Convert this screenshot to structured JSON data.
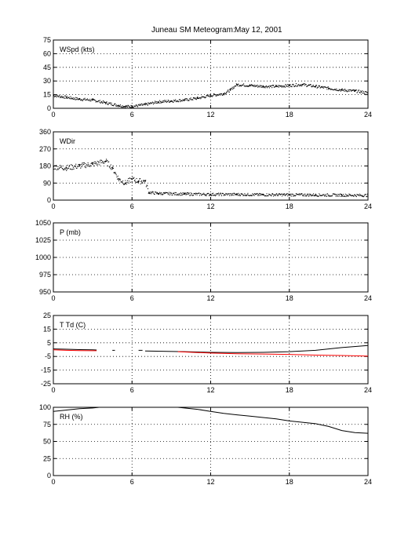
{
  "title": {
    "station": "Juneau SM Meteogram:",
    "date": "May 12, 2001"
  },
  "chart_data": [
    {
      "type": "scatter",
      "label": "WSpd (kts)",
      "xlim": [
        0,
        24
      ],
      "xticks": [
        "0",
        "6",
        "12",
        "18",
        "24"
      ],
      "ylim": [
        0,
        75
      ],
      "yticks": [
        "0",
        "15",
        "30",
        "45",
        "60",
        "75"
      ],
      "grid": true,
      "series": [
        {
          "color": "#000000",
          "x": [
            0,
            1,
            2,
            3,
            4,
            5,
            5.5,
            6,
            7,
            8,
            9,
            10,
            11,
            12,
            13,
            13.5,
            14,
            15,
            16,
            17,
            18,
            19,
            20,
            21,
            22,
            23,
            24
          ],
          "y": [
            14,
            12,
            10,
            9,
            6,
            3,
            2,
            2,
            4,
            7,
            8,
            9,
            11,
            14,
            16,
            20,
            26,
            25,
            24,
            24,
            25,
            26,
            24,
            22,
            20,
            19,
            17
          ]
        }
      ]
    },
    {
      "type": "scatter",
      "label": "WDir",
      "xlim": [
        0,
        24
      ],
      "xticks": [
        "0",
        "6",
        "12",
        "18",
        "24"
      ],
      "ylim": [
        0,
        360
      ],
      "yticks": [
        "0",
        "90",
        "180",
        "270",
        "360"
      ],
      "grid": true,
      "series": [
        {
          "color": "#000000",
          "x": [
            0,
            1,
            2,
            3,
            4,
            4.5,
            5,
            5.5,
            6,
            6.5,
            7,
            7.3,
            8,
            10,
            12,
            14,
            16,
            18,
            20,
            22,
            24
          ],
          "y": [
            175,
            170,
            180,
            190,
            205,
            170,
            110,
            90,
            110,
            100,
            100,
            40,
            35,
            32,
            30,
            30,
            28,
            28,
            27,
            26,
            25
          ]
        }
      ]
    },
    {
      "type": "line",
      "label": "P (mb)",
      "xlim": [
        0,
        24
      ],
      "xticks": [
        "0",
        "6",
        "12",
        "18",
        "24"
      ],
      "ylim": [
        950,
        1050
      ],
      "yticks": [
        "950",
        "975",
        "1000",
        "1025",
        "1050"
      ],
      "grid": true,
      "series": []
    },
    {
      "type": "line",
      "label": "T Td (C)",
      "xlim": [
        0,
        24
      ],
      "xticks": [
        "0",
        "6",
        "12",
        "18",
        "24"
      ],
      "ylim": [
        -25,
        25
      ],
      "yticks": [
        "-25",
        "-15",
        "-5",
        "5",
        "15",
        "25"
      ],
      "grid": true,
      "series": [
        {
          "color": "#000000",
          "segments": [
            {
              "x": [
                0,
                1,
                2,
                3,
                3.3
              ],
              "y": [
                0.5,
                0.3,
                0,
                -0.2,
                -0.3
              ]
            },
            {
              "x": [
                4.5,
                4.7
              ],
              "y": [
                -0.5,
                -0.5
              ]
            },
            {
              "x": [
                6.5,
                6.8
              ],
              "y": [
                -0.5,
                -0.5
              ]
            },
            {
              "x": [
                7,
                10,
                12,
                14,
                16,
                18,
                20,
                22,
                24
              ],
              "y": [
                -1,
                -1.5,
                -2,
                -2.2,
                -2,
                -1.5,
                -0.5,
                1.5,
                3
              ]
            }
          ]
        },
        {
          "color": "#ff0000",
          "segments": [
            {
              "x": [
                0,
                1,
                2,
                3,
                3.3
              ],
              "y": [
                -0.2,
                -0.5,
                -0.7,
                -0.8,
                -0.8
              ]
            },
            {
              "x": [
                9.5,
                12,
                14,
                16,
                18,
                20,
                22,
                24
              ],
              "y": [
                -1.5,
                -2.5,
                -3,
                -3.2,
                -3.5,
                -4,
                -4.3,
                -4.7
              ]
            }
          ]
        }
      ]
    },
    {
      "type": "line",
      "label": "RH (%)",
      "xlim": [
        0,
        24
      ],
      "xticks": [
        "0",
        "6",
        "12",
        "18",
        "24"
      ],
      "ylim": [
        0,
        100
      ],
      "yticks": [
        "0",
        "25",
        "50",
        "75",
        "100"
      ],
      "grid": true,
      "series": [
        {
          "color": "#000000",
          "segments": [
            {
              "x": [
                0,
                1,
                2,
                3,
                3.5
              ],
              "y": [
                94,
                96,
                98,
                99,
                100
              ]
            },
            {
              "x": [
                9.5,
                11,
                12,
                13,
                14,
                15,
                16,
                17,
                18,
                19,
                20,
                21,
                22,
                23,
                24
              ],
              "y": [
                100,
                97,
                94,
                91,
                89,
                87,
                85,
                83,
                80,
                78,
                76,
                72,
                66,
                63,
                62
              ]
            }
          ]
        }
      ]
    }
  ]
}
